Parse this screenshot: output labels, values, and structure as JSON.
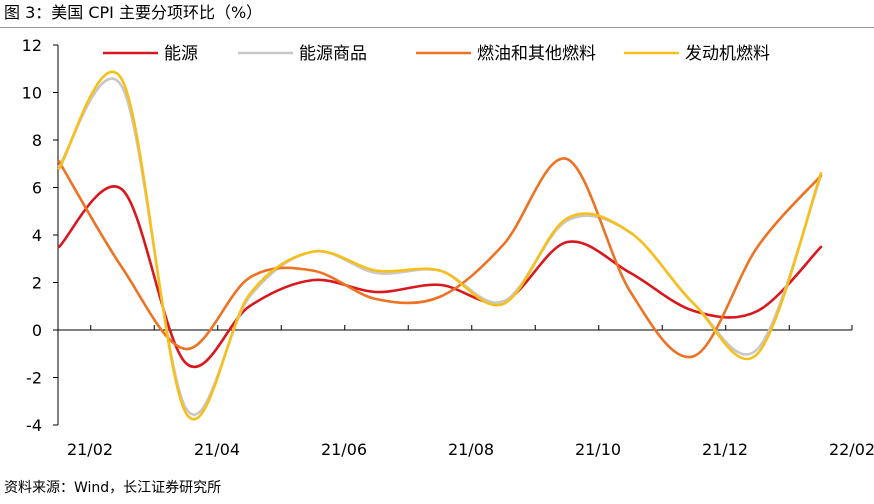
{
  "figure": {
    "title": "图 3：美国 CPI 主要分项环比（%）",
    "source": "资料来源：Wind，长江证券研究所"
  },
  "chart_data": {
    "type": "line",
    "title": "",
    "xlabel": "",
    "ylabel": "",
    "ylim": [
      -4,
      12
    ],
    "yticks": [
      -4,
      -2,
      0,
      2,
      4,
      6,
      8,
      10,
      12
    ],
    "x_tick_labels": [
      "21/02",
      "21/04",
      "21/06",
      "21/08",
      "21/10",
      "21/12",
      "22/02"
    ],
    "x": [
      "21/02",
      "21/03",
      "21/04",
      "21/05",
      "21/06",
      "21/07",
      "21/08",
      "21/09",
      "21/10",
      "21/11",
      "21/12",
      "22/01",
      "22/02"
    ],
    "grid": false,
    "legend_position": "top",
    "series": [
      {
        "name": "能源",
        "color": "#d9181e",
        "values": [
          3.5,
          5.9,
          -1.4,
          1.0,
          2.1,
          1.6,
          1.9,
          1.2,
          3.7,
          2.4,
          0.8,
          0.8,
          3.5
        ]
      },
      {
        "name": "能源商品",
        "color": "#c8c8c8",
        "values": [
          6.9,
          10.2,
          -3.3,
          1.4,
          3.3,
          2.4,
          2.5,
          1.2,
          4.6,
          4.1,
          1.1,
          -0.8,
          6.5
        ]
      },
      {
        "name": "燃油和其他燃料",
        "color": "#ed7223",
        "values": [
          7.1,
          2.6,
          -0.8,
          2.2,
          2.5,
          1.3,
          1.4,
          3.6,
          7.2,
          1.6,
          -1.1,
          3.5,
          6.5
        ]
      },
      {
        "name": "发动机燃料",
        "color": "#f7bf1b",
        "values": [
          6.8,
          10.5,
          -3.5,
          1.5,
          3.3,
          2.5,
          2.5,
          1.1,
          4.7,
          4.1,
          1.1,
          -1.0,
          6.6
        ]
      }
    ]
  }
}
